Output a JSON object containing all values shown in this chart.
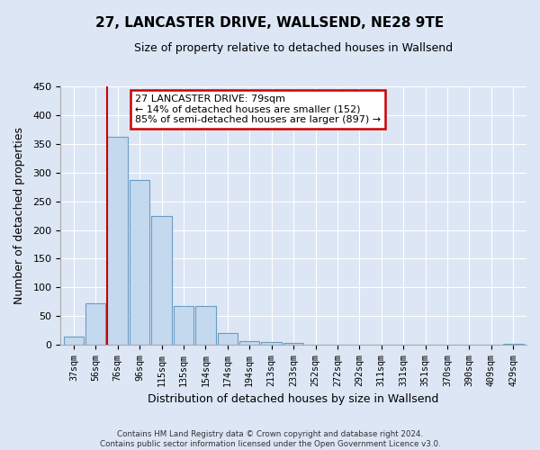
{
  "title": "27, LANCASTER DRIVE, WALLSEND, NE28 9TE",
  "subtitle": "Size of property relative to detached houses in Wallsend",
  "xlabel": "Distribution of detached houses by size in Wallsend",
  "ylabel": "Number of detached properties",
  "bar_labels": [
    "37sqm",
    "56sqm",
    "76sqm",
    "96sqm",
    "115sqm",
    "135sqm",
    "154sqm",
    "174sqm",
    "194sqm",
    "213sqm",
    "233sqm",
    "252sqm",
    "272sqm",
    "292sqm",
    "311sqm",
    "331sqm",
    "351sqm",
    "370sqm",
    "390sqm",
    "409sqm",
    "429sqm"
  ],
  "bar_values": [
    14,
    72,
    362,
    287,
    224,
    67,
    67,
    21,
    6,
    5,
    3,
    0,
    0,
    0,
    0,
    0,
    0,
    0,
    0,
    0,
    2
  ],
  "bar_color": "#c5d9ee",
  "bar_edge_color": "#6a9cc5",
  "background_color": "#dce6f5",
  "plot_bg_color": "#dce6f5",
  "red_line_color": "#cc0000",
  "annotation_title": "27 LANCASTER DRIVE: 79sqm",
  "annotation_line1": "← 14% of detached houses are smaller (152)",
  "annotation_line2": "85% of semi-detached houses are larger (897) →",
  "annotation_box_color": "#ffffff",
  "annotation_border_color": "#cc0000",
  "ylim": [
    0,
    450
  ],
  "yticks": [
    0,
    50,
    100,
    150,
    200,
    250,
    300,
    350,
    400,
    450
  ],
  "footer_line1": "Contains HM Land Registry data © Crown copyright and database right 2024.",
  "footer_line2": "Contains public sector information licensed under the Open Government Licence v3.0."
}
